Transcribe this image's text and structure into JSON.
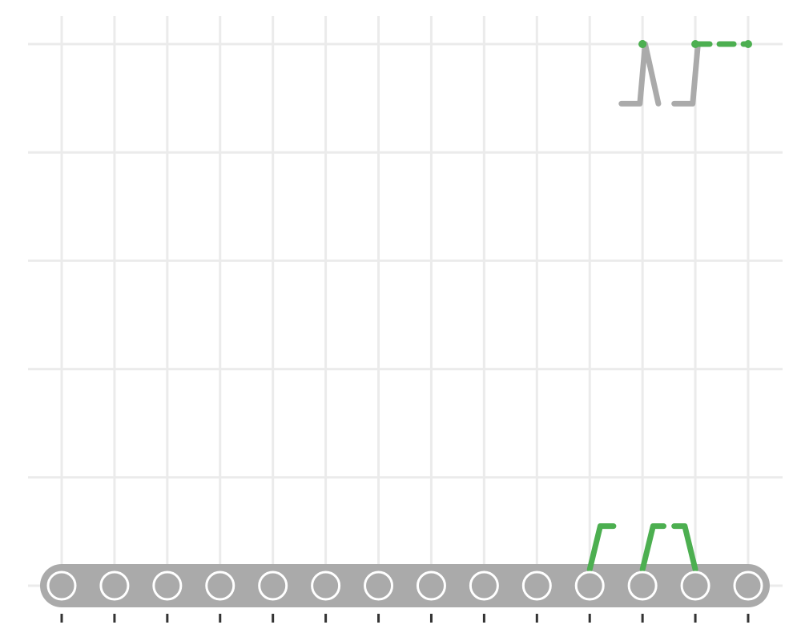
{
  "chart_data": {
    "type": "line",
    "title": "",
    "xlabel": "",
    "ylabel": "",
    "x": [
      1,
      2,
      3,
      4,
      5,
      6,
      7,
      8,
      9,
      10,
      11,
      12,
      13,
      14
    ],
    "xlim": [
      0.35,
      14.65
    ],
    "ylim": [
      -0.4,
      4.7
    ],
    "x_tick_labels_visible": false,
    "y_tick_labels_visible": false,
    "y_gridlines": [
      0,
      1,
      2,
      3,
      4,
      5
    ],
    "grid": true,
    "legend": "none",
    "series": [
      {
        "color": "#aaaaaa",
        "style": "step",
        "points": [
          {
            "x": 11.6,
            "y": 4.45
          },
          {
            "x": 11.95,
            "y": 4.45
          },
          {
            "x": 12.05,
            "y": 5.0
          },
          {
            "x": 12.3,
            "y": 4.45
          },
          {
            "x": 12.6,
            "y": 4.45
          },
          {
            "x": 12.95,
            "y": 4.45
          },
          {
            "x": 13.05,
            "y": 5.0
          }
        ],
        "gaps_after_index": [
          3
        ]
      },
      {
        "color": "#4caf50",
        "style": "step",
        "points": [
          {
            "x": 11.0,
            "y": 0.15
          },
          {
            "x": 11.2,
            "y": 0.55
          },
          {
            "x": 11.45,
            "y": 0.55
          }
        ],
        "gaps_after_index": []
      },
      {
        "color": "#4caf50",
        "style": "step",
        "points": [
          {
            "x": 12.0,
            "y": 0.15
          },
          {
            "x": 12.2,
            "y": 0.55
          },
          {
            "x": 12.4,
            "y": 0.55
          },
          {
            "x": 12.6,
            "y": 0.55
          },
          {
            "x": 12.8,
            "y": 0.55
          },
          {
            "x": 13.0,
            "y": 0.15
          }
        ],
        "gaps_after_index": [
          2
        ]
      },
      {
        "color": "#4caf50",
        "style": "dashed",
        "points": [
          {
            "x": 12.0,
            "y": 5.0
          },
          {
            "x": 12.0,
            "y": 5.0
          }
        ],
        "gaps_after_index": []
      },
      {
        "color": "#4caf50",
        "style": "dashed",
        "points": [
          {
            "x": 13.0,
            "y": 5.0
          },
          {
            "x": 14.0,
            "y": 5.0
          }
        ],
        "gaps_after_index": []
      }
    ],
    "nodes": {
      "y": 0,
      "x": [
        1,
        2,
        3,
        4,
        5,
        6,
        7,
        8,
        9,
        10,
        11,
        12,
        13,
        14
      ],
      "fill": "#aaaaaa",
      "track_color": "#aaaaaa"
    }
  }
}
